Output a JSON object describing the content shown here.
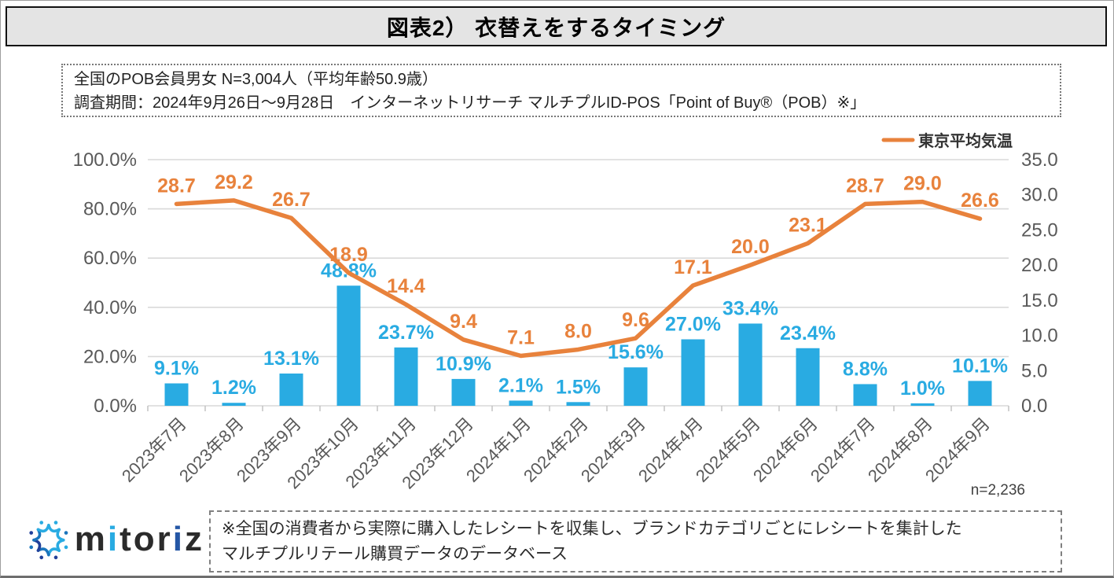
{
  "page": {
    "title": "図表2） 衣替えをするタイミング",
    "info_line1": "全国のPOB会員男女 N=3,004人（平均年齢50.9歳）",
    "info_line2": "調査期間：2024年9月26日〜9月28日　インターネットリサーチ マルチプルID-POS「Point of Buy®（POB）※」",
    "sample_note": "n=2,236",
    "footnote_line1": "※全国の消費者から実際に購入したレシートを収集し、ブランドカテゴリごとにレシートを集計した",
    "footnote_line2": "マルチプルリテール購買データのデータベース"
  },
  "logo": {
    "seg_m": "m",
    "seg_i1": "i",
    "seg_tor": "tor",
    "seg_i2": "i",
    "seg_z": "z"
  },
  "colors": {
    "bar": "#29ABE2",
    "line": "#E8823C",
    "axis_text": "#595959",
    "grid": "#D9D9D9",
    "title_bg": "#E4E4E4"
  },
  "chart_data": {
    "type": "bar",
    "subtype": "combo bar+line, dual axis",
    "categories": [
      "2023年7月",
      "2023年8月",
      "2023年9月",
      "2023年10月",
      "2023年11月",
      "2023年12月",
      "2024年1月",
      "2024年2月",
      "2024年3月",
      "2024年4月",
      "2024年5月",
      "2024年6月",
      "2024年7月",
      "2024年8月",
      "2024年9月"
    ],
    "series": [
      {
        "type": "bar",
        "axis": "left",
        "unit": "%",
        "color": "#29ABE2",
        "values": [
          9.1,
          1.2,
          13.1,
          48.8,
          23.7,
          10.9,
          2.1,
          1.5,
          15.6,
          27.0,
          33.4,
          23.4,
          8.8,
          1.0,
          10.1
        ]
      },
      {
        "name": "東京平均気温",
        "type": "line",
        "axis": "right",
        "unit": "°C",
        "color": "#E8823C",
        "values": [
          28.7,
          29.2,
          26.7,
          18.9,
          14.4,
          9.4,
          7.1,
          8.0,
          9.6,
          17.1,
          20.0,
          23.1,
          28.7,
          29.0,
          26.6
        ]
      }
    ],
    "left_axis": {
      "min": 0,
      "max": 100,
      "ticks": [
        "100.0%",
        "80.0%",
        "60.0%",
        "40.0%",
        "20.0%",
        "0.0%"
      ]
    },
    "right_axis": {
      "min": 0,
      "max": 35,
      "ticks": [
        "35.0",
        "30.0",
        "25.0",
        "20.0",
        "15.0",
        "10.0",
        "5.0",
        "0.0"
      ]
    },
    "legend": [
      {
        "label": "東京平均気温",
        "color": "#E8823C",
        "position": "top-right"
      }
    ],
    "grid": "horizontal only"
  }
}
